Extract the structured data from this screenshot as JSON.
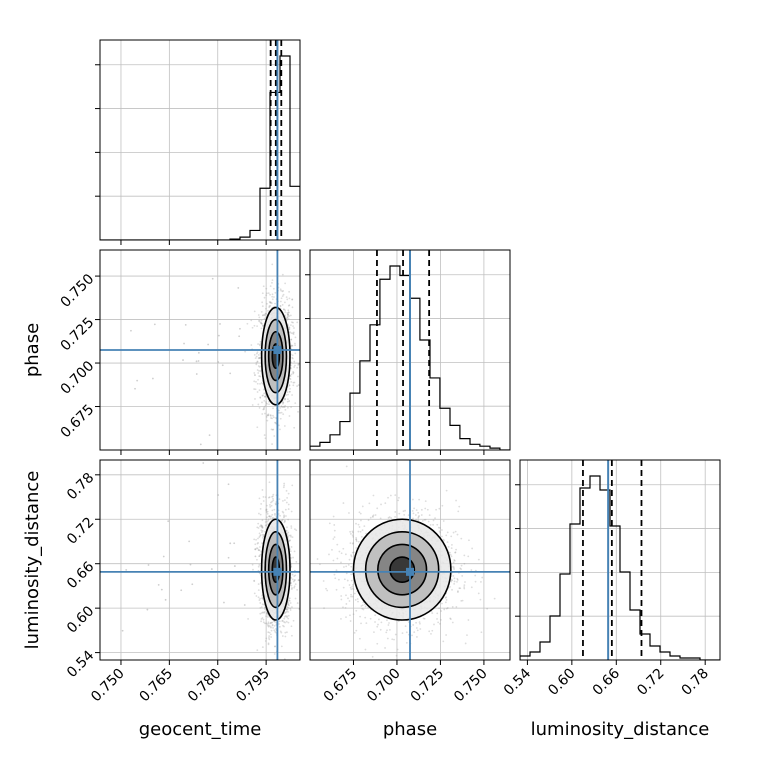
{
  "chart_data": {
    "type": "corner",
    "parameters": [
      {
        "key": "geocent_time",
        "label": "geocent_time",
        "range": [
          0.7435,
          0.8055
        ],
        "ticks": [
          0.75,
          0.765,
          0.78,
          0.795
        ],
        "tick_labels": [
          "0.750",
          "0.765",
          "0.780",
          "0.795"
        ],
        "truth": 0.7985,
        "quantiles": [
          0.7964,
          0.798,
          0.7997
        ],
        "histogram": {
          "edges": [
            0.7435,
            0.7466,
            0.7497,
            0.7528,
            0.7559,
            0.759,
            0.7621,
            0.7652,
            0.7683,
            0.7714,
            0.7745,
            0.7776,
            0.7807,
            0.7838,
            0.7869,
            0.79,
            0.7931,
            0.7962,
            0.7993,
            0.8024,
            0.8055
          ],
          "values": [
            0,
            0,
            0,
            0,
            0,
            0,
            0,
            0,
            0,
            0,
            0,
            0,
            0,
            0.005,
            0.015,
            0.05,
            0.27,
            0.77,
            0.96,
            0.28
          ]
        }
      },
      {
        "key": "phase",
        "label": "phase",
        "range": [
          0.65,
          0.765
        ],
        "ticks": [
          0.675,
          0.7,
          0.725,
          0.75
        ],
        "tick_labels": [
          "0.675",
          "0.700",
          "0.725",
          "0.750"
        ],
        "truth": 0.7075,
        "quantiles": [
          0.6885,
          0.7035,
          0.7185
        ],
        "histogram": {
          "edges": [
            0.65,
            0.6557,
            0.6615,
            0.6672,
            0.673,
            0.6787,
            0.6845,
            0.6902,
            0.696,
            0.7017,
            0.7075,
            0.7132,
            0.719,
            0.7247,
            0.7305,
            0.7362,
            0.742,
            0.7477,
            0.7535,
            0.7592,
            0.765
          ],
          "values": [
            0.02,
            0.04,
            0.08,
            0.15,
            0.3,
            0.47,
            0.66,
            0.9,
            0.97,
            0.92,
            0.8,
            0.58,
            0.38,
            0.22,
            0.13,
            0.06,
            0.03,
            0.02,
            0.01,
            0
          ]
        }
      },
      {
        "key": "luminosity_distance",
        "label": "luminosity_distance",
        "range": [
          0.53,
          0.8
        ],
        "ticks": [
          0.54,
          0.6,
          0.66,
          0.72,
          0.78
        ],
        "tick_labels": [
          "0.54",
          "0.60",
          "0.66",
          "0.72",
          "0.78"
        ],
        "truth": 0.649,
        "quantiles": [
          0.615,
          0.654,
          0.694
        ],
        "histogram": {
          "edges": [
            0.53,
            0.5435,
            0.557,
            0.5705,
            0.584,
            0.5975,
            0.611,
            0.6245,
            0.638,
            0.6515,
            0.665,
            0.6785,
            0.692,
            0.7055,
            0.719,
            0.7325,
            0.746,
            0.7595,
            0.773,
            0.7865,
            0.8
          ],
          "values": [
            0.02,
            0.04,
            0.09,
            0.22,
            0.43,
            0.68,
            0.86,
            0.92,
            0.85,
            0.67,
            0.44,
            0.25,
            0.13,
            0.07,
            0.04,
            0.02,
            0.01,
            0.01,
            0,
            0
          ]
        }
      }
    ],
    "pairs": [
      {
        "x": "geocent_time",
        "y": "phase",
        "center": [
          0.798,
          0.704
        ],
        "sigma": [
          0.0022,
          0.014
        ],
        "rho": 0
      },
      {
        "x": "geocent_time",
        "y": "luminosity_distance",
        "center": [
          0.798,
          0.652
        ],
        "sigma": [
          0.0022,
          0.034
        ],
        "rho": 0
      },
      {
        "x": "phase",
        "y": "luminosity_distance",
        "center": [
          0.703,
          0.652
        ],
        "sigma": [
          0.014,
          0.034
        ],
        "rho": 0
      }
    ],
    "contour_levels_sigma": [
      0.5,
      1,
      1.5,
      2
    ],
    "grid": true,
    "colors": {
      "truth": "#4682b4",
      "histogram": "#000000",
      "quantile": "#000000",
      "contour": "#000000",
      "grid": "#c0c0c0",
      "scatter": "#9e9e9e"
    }
  }
}
